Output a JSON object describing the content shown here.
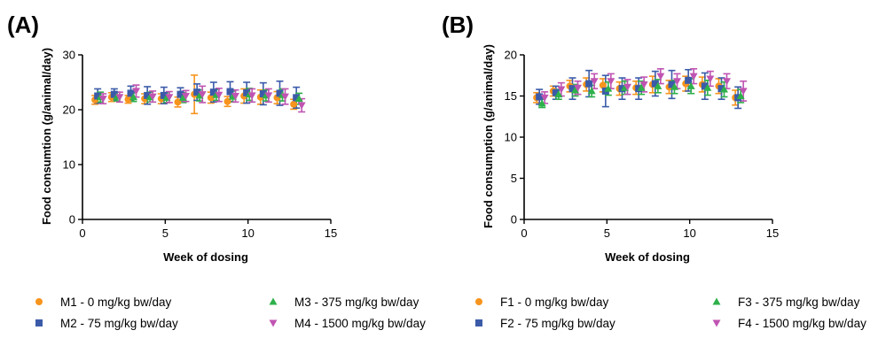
{
  "chart_data": [
    {
      "panel": "(A)",
      "type": "scatter",
      "xlabel": "Week of dosing",
      "ylabel": "Food consumtion (g/animal/day)",
      "xlim": [
        0,
        15
      ],
      "ylim": [
        0,
        30
      ],
      "xticks": [
        0,
        5,
        10,
        15
      ],
      "yticks": [
        0,
        10,
        20,
        30
      ],
      "x": [
        1,
        2,
        3,
        4,
        5,
        6,
        7,
        8,
        9,
        10,
        11,
        12,
        13
      ],
      "series": [
        {
          "name": "M1 - 0 mg/kg bw/day",
          "marker": "circle",
          "color": "#F7941D",
          "values": [
            21.8,
            22.3,
            21.9,
            22.0,
            22.0,
            21.4,
            22.8,
            22.2,
            21.5,
            22.5,
            22.3,
            22.2,
            21.0
          ],
          "errors": [
            0.8,
            0.8,
            0.7,
            0.9,
            0.9,
            0.9,
            3.5,
            1.0,
            0.9,
            1.3,
            1.3,
            1.1,
            0.9
          ]
        },
        {
          "name": "M2 - 75 mg/kg bw/day",
          "marker": "square",
          "color": "#3B5BA9",
          "values": [
            22.5,
            22.8,
            23.0,
            22.6,
            22.6,
            22.8,
            23.2,
            23.2,
            23.3,
            23.1,
            22.9,
            23.0,
            22.2
          ],
          "errors": [
            1.3,
            1.0,
            1.3,
            1.6,
            1.5,
            1.2,
            1.5,
            1.8,
            1.8,
            1.9,
            2.0,
            2.2,
            1.9
          ]
        },
        {
          "name": "M3 - 375 mg/kg bw/day",
          "marker": "triangle-up",
          "color": "#2EB04A",
          "values": [
            22.3,
            22.4,
            22.3,
            22.3,
            22.2,
            22.2,
            22.6,
            22.7,
            22.4,
            22.8,
            22.6,
            22.7,
            22.0
          ],
          "errors": [
            0.9,
            0.8,
            0.8,
            0.9,
            0.9,
            0.9,
            1.0,
            1.0,
            1.0,
            1.1,
            1.0,
            1.1,
            1.0
          ]
        },
        {
          "name": "M4 - 1500 mg/kg bw/day",
          "marker": "triangle-down",
          "color": "#C054B2",
          "values": [
            22.0,
            22.3,
            23.4,
            22.4,
            22.3,
            22.5,
            22.8,
            22.7,
            22.5,
            22.6,
            22.6,
            22.4,
            20.8
          ],
          "errors": [
            0.9,
            0.9,
            1.1,
            1.0,
            1.0,
            1.0,
            1.5,
            1.2,
            1.1,
            1.2,
            1.2,
            1.4,
            1.2
          ]
        }
      ]
    },
    {
      "panel": "(B)",
      "type": "scatter",
      "xlabel": "Week of dosing",
      "ylabel": "Food consumption (g/animal/day)",
      "xlim": [
        0,
        15
      ],
      "ylim": [
        0,
        20
      ],
      "xticks": [
        0,
        5,
        10,
        15
      ],
      "yticks": [
        0,
        5,
        10,
        15,
        20
      ],
      "x": [
        1,
        2,
        3,
        4,
        5,
        6,
        7,
        8,
        9,
        10,
        11,
        12,
        13
      ],
      "series": [
        {
          "name": "F1 - 0 mg/kg bw/day",
          "marker": "circle",
          "color": "#F7941D",
          "values": [
            14.8,
            15.6,
            16.2,
            16.4,
            16.3,
            15.9,
            16.0,
            16.4,
            16.1,
            16.5,
            16.4,
            16.2,
            14.8
          ],
          "errors": [
            0.6,
            0.6,
            0.7,
            0.8,
            0.8,
            0.8,
            0.8,
            1.0,
            0.8,
            0.9,
            0.9,
            0.9,
            0.9
          ]
        },
        {
          "name": "F2 - 75 mg/kg bw/day",
          "marker": "square",
          "color": "#3B5BA9",
          "values": [
            14.9,
            15.4,
            15.9,
            16.5,
            15.6,
            15.9,
            15.9,
            16.5,
            16.4,
            16.9,
            16.2,
            15.9,
            14.8
          ],
          "errors": [
            0.9,
            0.8,
            1.3,
            1.6,
            1.9,
            1.3,
            1.3,
            1.5,
            1.7,
            1.3,
            1.6,
            1.3,
            1.3
          ]
        },
        {
          "name": "F3 - 375 mg/kg bw/day",
          "marker": "triangle-up",
          "color": "#2EB04A",
          "values": [
            14.1,
            15.2,
            15.7,
            15.6,
            15.9,
            16.0,
            16.0,
            16.2,
            16.1,
            16.2,
            16.0,
            15.8,
            15.0
          ],
          "errors": [
            0.5,
            0.6,
            0.7,
            0.7,
            0.8,
            0.8,
            0.8,
            0.8,
            0.8,
            0.9,
            0.9,
            0.9,
            0.8
          ]
        },
        {
          "name": "F4 - 1500 mg/kg bw/day",
          "marker": "triangle-down",
          "color": "#C054B2",
          "values": [
            14.8,
            15.8,
            16.0,
            16.8,
            16.8,
            16.1,
            16.4,
            17.4,
            16.8,
            17.4,
            17.1,
            16.8,
            15.6
          ],
          "errors": [
            0.7,
            0.8,
            0.8,
            0.9,
            0.9,
            0.9,
            0.9,
            0.9,
            0.9,
            0.9,
            0.9,
            0.9,
            1.2
          ]
        }
      ]
    }
  ]
}
